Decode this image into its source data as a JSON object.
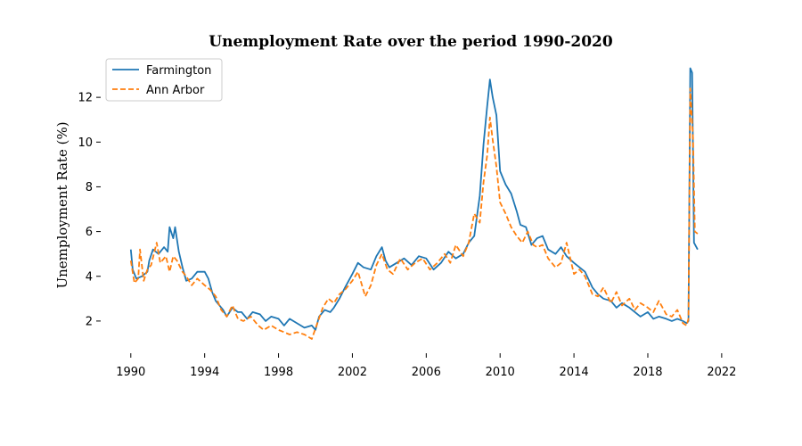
{
  "chart_data": {
    "type": "line",
    "title": "Unemployment Rate over the period 1990-2020",
    "xlabel": "",
    "ylabel": "Unemployment Rate (%)",
    "xlim": [
      1989.6,
      2020.8
    ],
    "ylim": [
      0.8,
      13.6
    ],
    "x_ticks": [
      1990,
      1994,
      1998,
      2002,
      2006,
      2010,
      2014,
      2018,
      2022
    ],
    "y_ticks": [
      2,
      4,
      6,
      8,
      10,
      12
    ],
    "grid": false,
    "legend": "top-left",
    "series": [
      {
        "name": "Farmington",
        "color": "#1f77b4",
        "dash": "solid",
        "points": [
          [
            1990.0,
            5.2
          ],
          [
            1990.1,
            4.3
          ],
          [
            1990.3,
            3.9
          ],
          [
            1990.6,
            4.0
          ],
          [
            1990.9,
            4.2
          ],
          [
            1991.0,
            4.7
          ],
          [
            1991.2,
            5.2
          ],
          [
            1991.5,
            5.0
          ],
          [
            1991.8,
            5.3
          ],
          [
            1992.0,
            5.1
          ],
          [
            1992.1,
            6.2
          ],
          [
            1992.3,
            5.7
          ],
          [
            1992.4,
            6.2
          ],
          [
            1992.6,
            5.1
          ],
          [
            1992.8,
            4.4
          ],
          [
            1993.0,
            3.8
          ],
          [
            1993.3,
            3.9
          ],
          [
            1993.6,
            4.2
          ],
          [
            1994.0,
            4.2
          ],
          [
            1994.2,
            3.9
          ],
          [
            1994.4,
            3.3
          ],
          [
            1994.6,
            2.9
          ],
          [
            1994.8,
            2.7
          ],
          [
            1995.0,
            2.5
          ],
          [
            1995.2,
            2.2
          ],
          [
            1995.5,
            2.6
          ],
          [
            1995.8,
            2.4
          ],
          [
            1996.0,
            2.4
          ],
          [
            1996.3,
            2.1
          ],
          [
            1996.6,
            2.4
          ],
          [
            1997.0,
            2.3
          ],
          [
            1997.3,
            2.0
          ],
          [
            1997.6,
            2.2
          ],
          [
            1998.0,
            2.1
          ],
          [
            1998.3,
            1.8
          ],
          [
            1998.6,
            2.1
          ],
          [
            1999.0,
            1.9
          ],
          [
            1999.4,
            1.7
          ],
          [
            1999.8,
            1.8
          ],
          [
            2000.0,
            1.6
          ],
          [
            2000.2,
            2.2
          ],
          [
            2000.5,
            2.5
          ],
          [
            2000.8,
            2.4
          ],
          [
            2001.0,
            2.6
          ],
          [
            2001.3,
            3.0
          ],
          [
            2001.6,
            3.5
          ],
          [
            2002.0,
            4.1
          ],
          [
            2002.3,
            4.6
          ],
          [
            2002.6,
            4.4
          ],
          [
            2003.0,
            4.3
          ],
          [
            2003.3,
            4.9
          ],
          [
            2003.6,
            5.3
          ],
          [
            2003.8,
            4.7
          ],
          [
            2004.0,
            4.4
          ],
          [
            2004.4,
            4.6
          ],
          [
            2004.8,
            4.8
          ],
          [
            2005.2,
            4.5
          ],
          [
            2005.6,
            4.9
          ],
          [
            2006.0,
            4.8
          ],
          [
            2006.4,
            4.3
          ],
          [
            2006.8,
            4.6
          ],
          [
            2007.2,
            5.1
          ],
          [
            2007.6,
            4.8
          ],
          [
            2008.0,
            5.0
          ],
          [
            2008.3,
            5.5
          ],
          [
            2008.6,
            5.8
          ],
          [
            2008.9,
            7.6
          ],
          [
            2009.1,
            9.9
          ],
          [
            2009.3,
            11.6
          ],
          [
            2009.45,
            12.8
          ],
          [
            2009.6,
            12.0
          ],
          [
            2009.8,
            11.2
          ],
          [
            2010.0,
            8.7
          ],
          [
            2010.3,
            8.1
          ],
          [
            2010.6,
            7.7
          ],
          [
            2010.9,
            6.9
          ],
          [
            2011.1,
            6.3
          ],
          [
            2011.4,
            6.2
          ],
          [
            2011.7,
            5.4
          ],
          [
            2012.0,
            5.7
          ],
          [
            2012.3,
            5.8
          ],
          [
            2012.6,
            5.2
          ],
          [
            2013.0,
            5.0
          ],
          [
            2013.3,
            5.3
          ],
          [
            2013.6,
            4.9
          ],
          [
            2014.0,
            4.6
          ],
          [
            2014.3,
            4.4
          ],
          [
            2014.6,
            4.2
          ],
          [
            2015.0,
            3.5
          ],
          [
            2015.3,
            3.2
          ],
          [
            2015.6,
            3.0
          ],
          [
            2016.0,
            2.9
          ],
          [
            2016.3,
            2.6
          ],
          [
            2016.6,
            2.8
          ],
          [
            2017.0,
            2.6
          ],
          [
            2017.3,
            2.4
          ],
          [
            2017.6,
            2.2
          ],
          [
            2018.0,
            2.4
          ],
          [
            2018.3,
            2.1
          ],
          [
            2018.6,
            2.2
          ],
          [
            2019.0,
            2.1
          ],
          [
            2019.3,
            2.0
          ],
          [
            2019.6,
            2.1
          ],
          [
            2019.9,
            2.0
          ],
          [
            2020.1,
            1.9
          ],
          [
            2020.2,
            2.0
          ],
          [
            2020.3,
            13.3
          ],
          [
            2020.4,
            13.1
          ],
          [
            2020.5,
            5.5
          ],
          [
            2020.7,
            5.2
          ]
        ]
      },
      {
        "name": "Ann Arbor",
        "color": "#ff7f0e",
        "dash": "dashed",
        "points": [
          [
            1990.0,
            4.7
          ],
          [
            1990.2,
            3.7
          ],
          [
            1990.4,
            3.9
          ],
          [
            1990.5,
            5.2
          ],
          [
            1990.7,
            3.8
          ],
          [
            1990.9,
            4.3
          ],
          [
            1991.1,
            4.5
          ],
          [
            1991.4,
            5.5
          ],
          [
            1991.6,
            4.6
          ],
          [
            1991.9,
            4.9
          ],
          [
            1992.1,
            4.2
          ],
          [
            1992.3,
            4.9
          ],
          [
            1992.5,
            4.7
          ],
          [
            1992.8,
            4.2
          ],
          [
            1993.0,
            4.0
          ],
          [
            1993.3,
            3.6
          ],
          [
            1993.6,
            3.9
          ],
          [
            1994.0,
            3.6
          ],
          [
            1994.3,
            3.4
          ],
          [
            1994.6,
            3.1
          ],
          [
            1994.9,
            2.5
          ],
          [
            1995.2,
            2.2
          ],
          [
            1995.5,
            2.7
          ],
          [
            1995.8,
            2.1
          ],
          [
            1996.1,
            2.0
          ],
          [
            1996.5,
            2.2
          ],
          [
            1996.9,
            1.8
          ],
          [
            1997.2,
            1.6
          ],
          [
            1997.6,
            1.8
          ],
          [
            1998.0,
            1.6
          ],
          [
            1998.3,
            1.5
          ],
          [
            1998.6,
            1.4
          ],
          [
            1999.0,
            1.5
          ],
          [
            1999.4,
            1.4
          ],
          [
            1999.8,
            1.2
          ],
          [
            2000.1,
            1.9
          ],
          [
            2000.4,
            2.6
          ],
          [
            2000.7,
            3.0
          ],
          [
            2001.0,
            2.8
          ],
          [
            2001.3,
            3.2
          ],
          [
            2001.6,
            3.4
          ],
          [
            2002.0,
            3.8
          ],
          [
            2002.3,
            4.2
          ],
          [
            2002.7,
            3.1
          ],
          [
            2003.0,
            3.6
          ],
          [
            2003.3,
            4.5
          ],
          [
            2003.6,
            5.0
          ],
          [
            2003.9,
            4.3
          ],
          [
            2004.2,
            4.1
          ],
          [
            2004.6,
            4.8
          ],
          [
            2005.0,
            4.3
          ],
          [
            2005.4,
            4.6
          ],
          [
            2005.8,
            4.8
          ],
          [
            2006.2,
            4.3
          ],
          [
            2006.6,
            4.6
          ],
          [
            2007.0,
            5.0
          ],
          [
            2007.3,
            4.6
          ],
          [
            2007.6,
            5.4
          ],
          [
            2008.0,
            4.9
          ],
          [
            2008.3,
            5.5
          ],
          [
            2008.6,
            6.8
          ],
          [
            2008.9,
            6.4
          ],
          [
            2009.1,
            8.2
          ],
          [
            2009.3,
            9.4
          ],
          [
            2009.45,
            11.1
          ],
          [
            2009.6,
            10.1
          ],
          [
            2009.8,
            8.9
          ],
          [
            2010.0,
            7.3
          ],
          [
            2010.3,
            6.8
          ],
          [
            2010.6,
            6.2
          ],
          [
            2010.9,
            5.8
          ],
          [
            2011.2,
            5.5
          ],
          [
            2011.5,
            6.0
          ],
          [
            2011.8,
            5.4
          ],
          [
            2012.0,
            5.3
          ],
          [
            2012.3,
            5.4
          ],
          [
            2012.6,
            4.8
          ],
          [
            2013.0,
            4.4
          ],
          [
            2013.3,
            4.6
          ],
          [
            2013.6,
            5.5
          ],
          [
            2014.0,
            4.1
          ],
          [
            2014.3,
            4.3
          ],
          [
            2014.6,
            4.0
          ],
          [
            2015.0,
            3.2
          ],
          [
            2015.3,
            3.1
          ],
          [
            2015.6,
            3.5
          ],
          [
            2016.0,
            2.8
          ],
          [
            2016.3,
            3.3
          ],
          [
            2016.6,
            2.7
          ],
          [
            2017.0,
            3.0
          ],
          [
            2017.3,
            2.5
          ],
          [
            2017.6,
            2.8
          ],
          [
            2018.0,
            2.6
          ],
          [
            2018.3,
            2.4
          ],
          [
            2018.6,
            2.9
          ],
          [
            2019.0,
            2.3
          ],
          [
            2019.3,
            2.2
          ],
          [
            2019.6,
            2.5
          ],
          [
            2019.9,
            1.9
          ],
          [
            2020.1,
            1.8
          ],
          [
            2020.2,
            2.1
          ],
          [
            2020.3,
            12.4
          ],
          [
            2020.45,
            10.2
          ],
          [
            2020.55,
            6.0
          ],
          [
            2020.7,
            5.9
          ]
        ]
      }
    ]
  }
}
